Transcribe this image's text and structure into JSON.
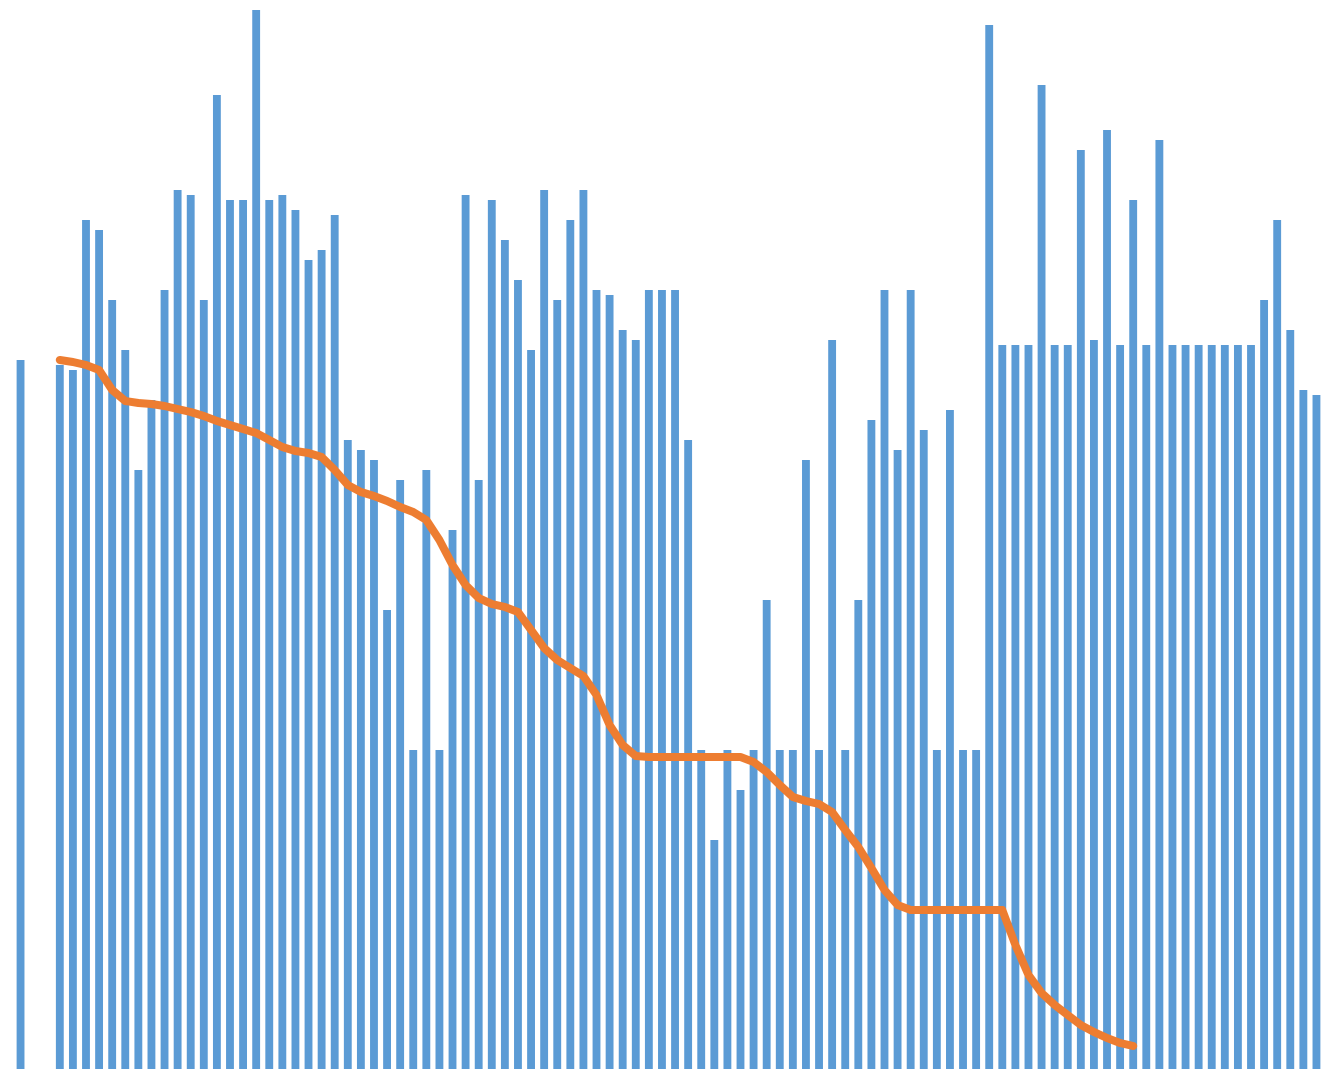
{
  "chart_data": {
    "type": "bar",
    "categories": [
      null,
      null,
      null,
      null,
      null,
      null,
      null,
      null,
      null,
      null,
      null,
      null,
      null,
      null,
      null,
      null,
      null,
      null,
      null,
      null,
      null,
      null,
      null,
      null,
      null,
      null,
      null,
      null,
      null,
      null,
      null,
      null,
      null,
      null,
      null,
      null,
      null,
      null,
      null,
      null,
      null,
      null,
      null,
      null,
      null,
      null,
      null,
      null,
      null,
      null,
      null,
      null,
      null,
      null,
      null,
      null,
      null,
      null,
      null,
      null,
      null,
      null,
      null,
      null,
      null,
      null,
      null,
      null,
      null,
      null,
      null,
      null,
      null,
      null,
      null,
      null,
      null,
      null,
      null,
      null,
      null,
      null,
      null,
      null,
      null,
      null,
      null,
      null,
      null,
      null,
      null,
      null,
      null,
      null,
      null,
      null,
      null,
      null,
      null,
      null
    ],
    "ylim": [
      0,
      1069
    ],
    "series": [
      {
        "type": "bar",
        "color": "#5b9bd5",
        "values": [
          709,
          0,
          0,
          704,
          699,
          849,
          839,
          769,
          719,
          599,
          669,
          779,
          879,
          874,
          769,
          974,
          869,
          869,
          1059,
          869,
          874,
          859,
          809,
          819,
          854,
          629,
          619,
          609,
          459,
          589,
          319,
          599,
          319,
          539,
          874,
          589,
          869,
          829,
          789,
          719,
          879,
          769,
          849,
          879,
          779,
          774,
          739,
          729,
          779,
          779,
          779,
          629,
          319,
          229,
          319,
          279,
          319,
          469,
          319,
          319,
          609,
          319,
          729,
          319,
          469,
          649,
          779,
          619,
          779,
          639,
          319,
          659,
          319,
          319,
          1044,
          724,
          724,
          724,
          984,
          724,
          724,
          919,
          729,
          939,
          724,
          869,
          724,
          929,
          724,
          724,
          724,
          724,
          724,
          724,
          724,
          769,
          849,
          739,
          679,
          674
        ]
      },
      {
        "type": "line",
        "color": "#ed7d31",
        "values": [
          null,
          null,
          null,
          709,
          707,
          704,
          699,
          679,
          668,
          666,
          665,
          663,
          660,
          657,
          653,
          648,
          644,
          640,
          636,
          629,
          622,
          618,
          616,
          612,
          599,
          584,
          577,
          573,
          568,
          562,
          557,
          549,
          529,
          504,
          484,
          471,
          465,
          462,
          457,
          439,
          421,
          409,
          401,
          393,
          374,
          344,
          324,
          313,
          312,
          312,
          312,
          312,
          312,
          312,
          312,
          312,
          307,
          297,
          284,
          272,
          268,
          265,
          257,
          239,
          222,
          201,
          179,
          164,
          159,
          159,
          159,
          159,
          159,
          159,
          159,
          159,
          124,
          94,
          76,
          64,
          54,
          44,
          37,
          31,
          26,
          23,
          null,
          null,
          null,
          null,
          null,
          null,
          null,
          null,
          null,
          null,
          null,
          null,
          null,
          null
        ]
      }
    ]
  }
}
